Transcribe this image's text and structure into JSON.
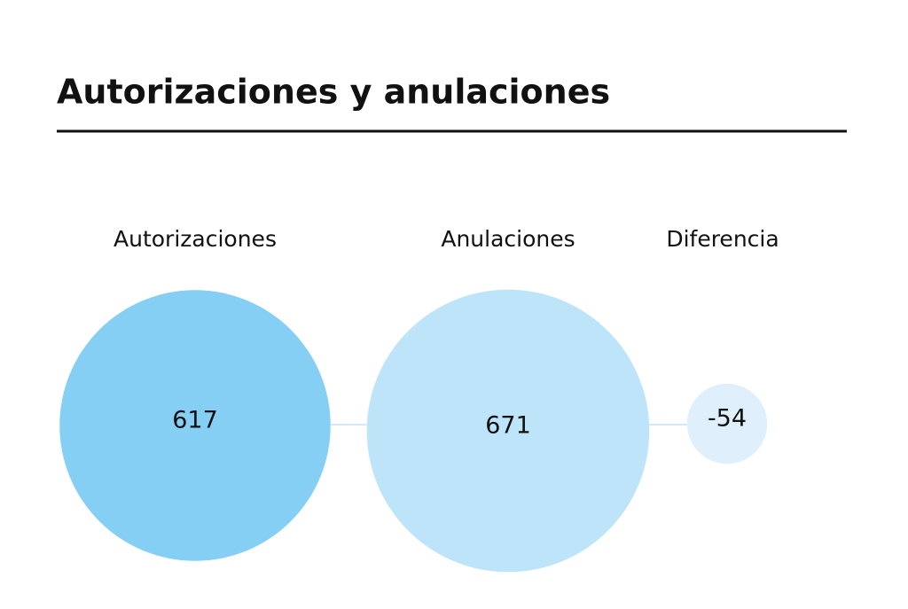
{
  "chart_data": {
    "type": "bubble",
    "title": "Autorizaciones y anulaciones",
    "categories": [
      "Autorizaciones",
      "Anulaciones",
      "Diferencia"
    ],
    "values": [
      617,
      671,
      -54
    ],
    "colors": [
      "#86cff4",
      "#bde4f9",
      "#dff0fc"
    ]
  }
}
